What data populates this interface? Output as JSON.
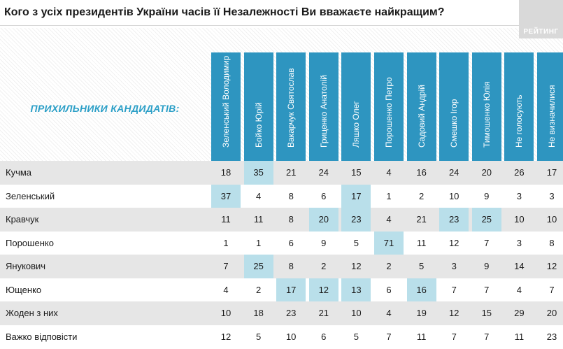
{
  "title": "Кого з усіх президентів України часів її Незалежності Ви вважаєте найкращим?",
  "logo_text": "РЕЙТИНГ",
  "colors": {
    "header": "#2e95c0",
    "highlight": "#b9dfea",
    "row_shade": "#e6e6e6",
    "accent_text": "#2b9fc7"
  },
  "chart_data": {
    "type": "table",
    "row_header_label": "ПРИХИЛЬНИКИ КАНДИДАТІВ:",
    "columns": [
      "Зеленський Володимир",
      "Бойко Юрій",
      "Вакарчук Святослав",
      "Гриценко Анатолій",
      "Ляшко Олег",
      "Порошенко Петро",
      "Садовий Андрій",
      "Смешко Ігор",
      "Тимошенко Юлія",
      "Не голосують",
      "Не визначилися"
    ],
    "rows": [
      {
        "label": "Кучма",
        "values": [
          "18",
          "35",
          "21",
          "24",
          "15",
          "4",
          "16",
          "24",
          "20",
          "26",
          "17"
        ],
        "highlight": [
          1
        ]
      },
      {
        "label": "Зеленський",
        "values": [
          "37",
          "4",
          "8",
          "6",
          "17",
          "1",
          "2",
          "10",
          "9",
          "3",
          "3"
        ],
        "highlight": [
          0,
          4
        ]
      },
      {
        "label": "Кравчук",
        "values": [
          "11",
          "11",
          "8",
          "20",
          "23",
          "4",
          "21",
          "23",
          "25",
          "10",
          "10"
        ],
        "highlight": [
          3,
          4,
          7,
          8
        ]
      },
      {
        "label": "Порошенко",
        "values": [
          "1",
          "1",
          "6",
          "9",
          "5",
          "71",
          "11",
          "12",
          "7",
          "3",
          "8"
        ],
        "highlight": [
          5
        ]
      },
      {
        "label": "Янукович",
        "values": [
          "7",
          "25",
          "8",
          "2",
          "12",
          "2",
          "5",
          "3",
          "9",
          "14",
          "12"
        ],
        "highlight": [
          1
        ]
      },
      {
        "label": "Ющенко",
        "values": [
          "4",
          "2",
          "17",
          "12",
          "13",
          "6",
          "16",
          "7",
          "7",
          "4",
          "7"
        ],
        "highlight": [
          2,
          3,
          4,
          6
        ]
      },
      {
        "label": "Жоден з них",
        "values": [
          "10",
          "18",
          "23",
          "21",
          "10",
          "4",
          "19",
          "12",
          "15",
          "29",
          "20"
        ],
        "highlight": []
      },
      {
        "label": "Важко відповісти",
        "values": [
          "12",
          "5",
          "10",
          "6",
          "5",
          "7",
          "11",
          "7",
          "7",
          "11",
          "23"
        ],
        "highlight": []
      }
    ]
  }
}
